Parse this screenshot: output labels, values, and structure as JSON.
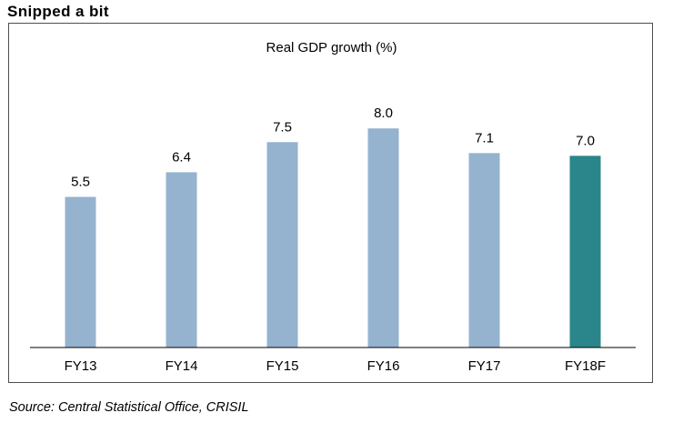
{
  "heading": "Snipped a bit",
  "source": "Source: Central Statistical Office, CRISIL",
  "colors": {
    "bar": "#95b3cf",
    "highlight_bar": "#2a868a",
    "axis": "#000000",
    "frame": "#4d4d4d"
  },
  "chart_data": {
    "type": "bar",
    "title": "Real GDP growth (%)",
    "xlabel": "",
    "ylabel": "",
    "categories": [
      "FY13",
      "FY14",
      "FY15",
      "FY16",
      "FY17",
      "FY18F"
    ],
    "values": [
      5.5,
      6.4,
      7.5,
      8.0,
      7.1,
      7.0
    ],
    "data_labels": [
      "5.5",
      "6.4",
      "7.5",
      "8.0",
      "7.1",
      "7.0"
    ],
    "highlighted_category": "FY18F",
    "ylim": [
      0,
      8.8
    ],
    "grid": false,
    "legend": "none"
  }
}
